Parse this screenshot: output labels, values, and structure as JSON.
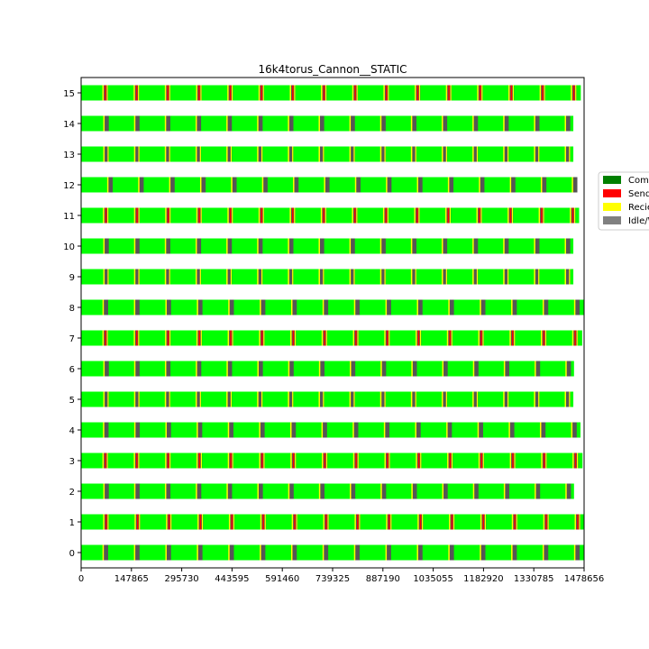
{
  "chart_data": {
    "type": "gantt",
    "title": "16k4torus_Cannon__STATIC",
    "x_ticks": [
      0,
      147865,
      295730,
      443595,
      591460,
      739325,
      887190,
      1035055,
      1182920,
      1330785,
      1478656
    ],
    "x_tick_labels": [
      "0",
      "147865",
      "295730",
      "443595",
      "591460",
      "739325",
      "887190",
      "1035055",
      "1182920",
      "1330785",
      "1478656"
    ],
    "xlim": [
      0,
      1478656
    ],
    "rows": [
      "0",
      "1",
      "2",
      "3",
      "4",
      "5",
      "6",
      "7",
      "8",
      "9",
      "10",
      "11",
      "12",
      "13",
      "14",
      "15"
    ],
    "legend_position": "right (partially cut off)",
    "legend": [
      {
        "label": "Comp",
        "color": "#008000"
      },
      {
        "label": "Send",
        "color": "#ff0000"
      },
      {
        "label": "Reciev",
        "color": "#ffff00"
      },
      {
        "label": "Idle/W",
        "color": "#808080"
      }
    ],
    "colors": {
      "compute": "#00ff00",
      "send": "#ff0000",
      "receive": "#ffff00",
      "idle": "#555555"
    },
    "row_end_times": [
      1478656,
      1478656,
      1449000,
      1474000,
      1468000,
      1447000,
      1449000,
      1473000,
      1478656,
      1447000,
      1447000,
      1464000,
      1457000,
      1447000,
      1447000,
      1469000
    ],
    "phase_count": 16,
    "row_offsets": [
      0.7,
      0.72,
      0.74,
      0.7,
      0.72,
      0.74,
      0.74,
      0.7,
      0.7,
      0.74,
      0.74,
      0.72,
      0.86,
      0.74,
      0.74,
      0.7
    ]
  }
}
